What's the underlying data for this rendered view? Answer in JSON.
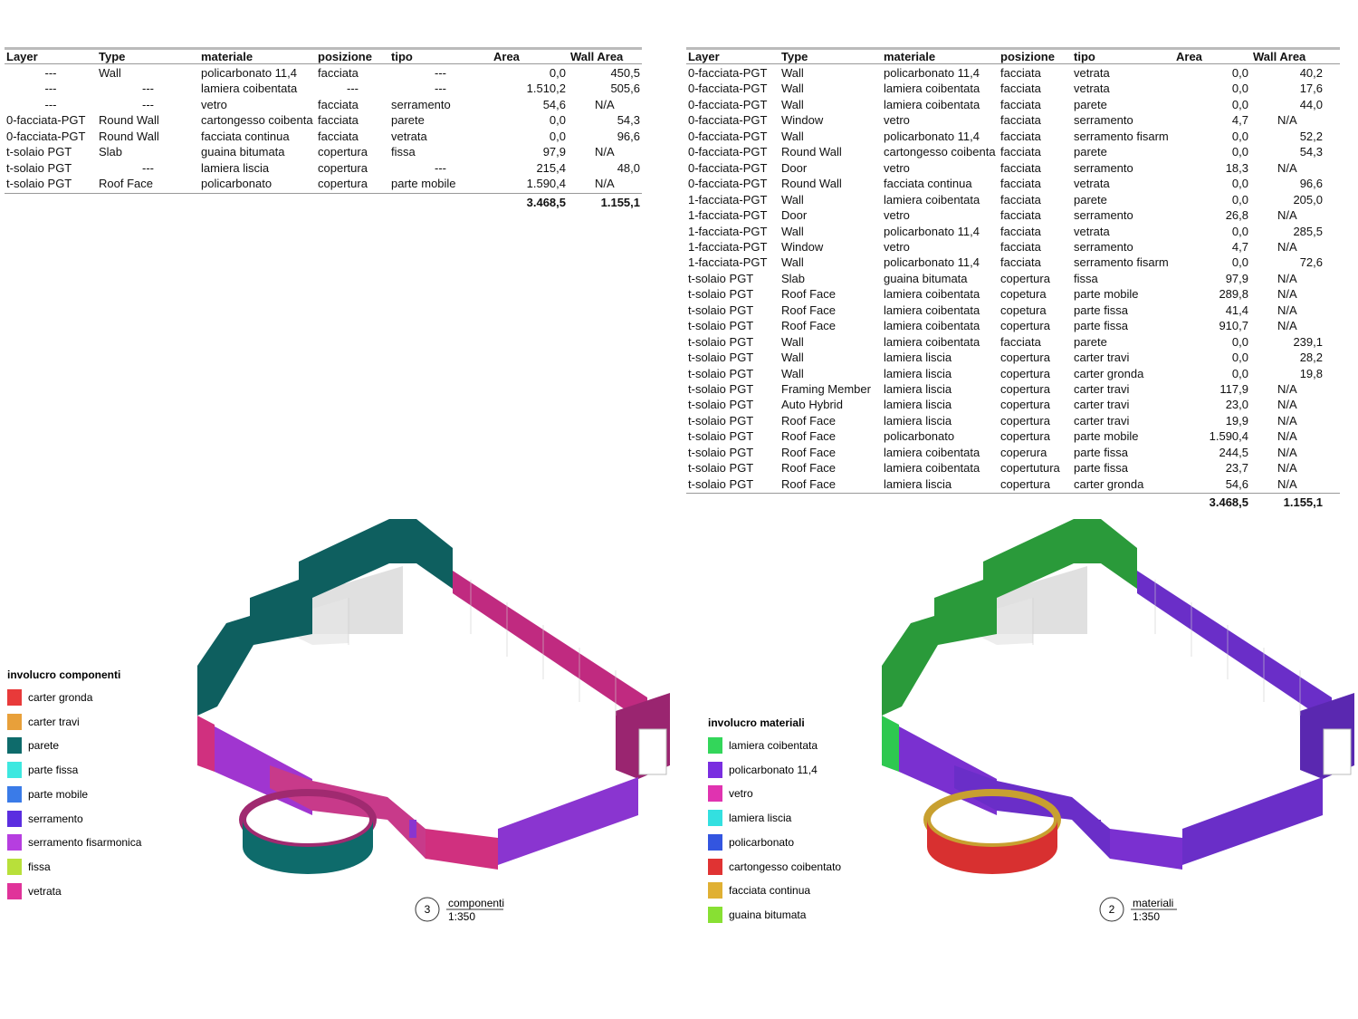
{
  "left_table": {
    "headers": [
      "Layer",
      "Type",
      "materiale",
      "posizione",
      "tipo",
      "Area",
      "Wall Area"
    ],
    "rows": [
      [
        "---",
        "Wall",
        "policarbonato 11,4",
        "facciata",
        "---",
        "0,0",
        "450,5"
      ],
      [
        "---",
        "---",
        "lamiera coibentata",
        "---",
        "---",
        "1.510,2",
        "505,6"
      ],
      [
        "---",
        "---",
        "vetro",
        "facciata",
        "serramento",
        "54,6",
        "N/A"
      ],
      [
        "0-facciata-PGT",
        "Round Wall",
        "cartongesso coibenta",
        "facciata",
        "parete",
        "0,0",
        "54,3"
      ],
      [
        "0-facciata-PGT",
        "Round Wall",
        "facciata continua",
        "facciata",
        "vetrata",
        "0,0",
        "96,6"
      ],
      [
        "t-solaio PGT",
        "Slab",
        "guaina bitumata",
        "copertura",
        "fissa",
        "97,9",
        "N/A"
      ],
      [
        "t-solaio PGT",
        "---",
        "lamiera liscia",
        "copertura",
        "---",
        "215,4",
        "48,0"
      ],
      [
        "t-solaio PGT",
        "Roof Face",
        "policarbonato",
        "copertura",
        "parte mobile",
        "1.590,4",
        "N/A"
      ]
    ],
    "totals": [
      "3.468,5",
      "1.155,1"
    ]
  },
  "right_table": {
    "headers": [
      "Layer",
      "Type",
      "materiale",
      "posizione",
      "tipo",
      "Area",
      "Wall Area"
    ],
    "rows": [
      [
        "0-facciata-PGT",
        "Wall",
        "policarbonato 11,4",
        "facciata",
        "vetrata",
        "0,0",
        "40,2"
      ],
      [
        "0-facciata-PGT",
        "Wall",
        "lamiera coibentata",
        "facciata",
        "vetrata",
        "0,0",
        "17,6"
      ],
      [
        "0-facciata-PGT",
        "Wall",
        "lamiera coibentata",
        "facciata",
        "parete",
        "0,0",
        "44,0"
      ],
      [
        "0-facciata-PGT",
        "Window",
        "vetro",
        "facciata",
        "serramento",
        "4,7",
        "N/A"
      ],
      [
        "0-facciata-PGT",
        "Wall",
        "policarbonato 11,4",
        "facciata",
        "serramento fisarm",
        "0,0",
        "52,2"
      ],
      [
        "0-facciata-PGT",
        "Round Wall",
        "cartongesso coibenta",
        "facciata",
        "parete",
        "0,0",
        "54,3"
      ],
      [
        "0-facciata-PGT",
        "Door",
        "vetro",
        "facciata",
        "serramento",
        "18,3",
        "N/A"
      ],
      [
        "0-facciata-PGT",
        "Round Wall",
        "facciata continua",
        "facciata",
        "vetrata",
        "0,0",
        "96,6"
      ],
      [
        "1-facciata-PGT",
        "Wall",
        "lamiera coibentata",
        "facciata",
        "parete",
        "0,0",
        "205,0"
      ],
      [
        "1-facciata-PGT",
        "Door",
        "vetro",
        "facciata",
        "serramento",
        "26,8",
        "N/A"
      ],
      [
        "1-facciata-PGT",
        "Wall",
        "policarbonato 11,4",
        "facciata",
        "vetrata",
        "0,0",
        "285,5"
      ],
      [
        "1-facciata-PGT",
        "Window",
        "vetro",
        "facciata",
        "serramento",
        "4,7",
        "N/A"
      ],
      [
        "1-facciata-PGT",
        "Wall",
        "policarbonato 11,4",
        "facciata",
        "serramento fisarm",
        "0,0",
        "72,6"
      ],
      [
        "t-solaio PGT",
        "Slab",
        "guaina bitumata",
        "copertura",
        "fissa",
        "97,9",
        "N/A"
      ],
      [
        "t-solaio PGT",
        "Roof Face",
        "lamiera coibentata",
        "copetura",
        "parte mobile",
        "289,8",
        "N/A"
      ],
      [
        "t-solaio PGT",
        "Roof Face",
        "lamiera coibentata",
        "copetura",
        "parte fissa",
        "41,4",
        "N/A"
      ],
      [
        "t-solaio PGT",
        "Roof Face",
        "lamiera coibentata",
        "copertura",
        "parte fissa",
        "910,7",
        "N/A"
      ],
      [
        "t-solaio PGT",
        "Wall",
        "lamiera coibentata",
        "facciata",
        "parete",
        "0,0",
        "239,1"
      ],
      [
        "t-solaio PGT",
        "Wall",
        "lamiera liscia",
        "copertura",
        "carter travi",
        "0,0",
        "28,2"
      ],
      [
        "t-solaio PGT",
        "Wall",
        "lamiera liscia",
        "copertura",
        "carter gronda",
        "0,0",
        "19,8"
      ],
      [
        "t-solaio PGT",
        "Framing Member",
        "lamiera liscia",
        "copertura",
        "carter travi",
        "117,9",
        "N/A"
      ],
      [
        "t-solaio PGT",
        "Auto Hybrid",
        "lamiera liscia",
        "copertura",
        "carter travi",
        "23,0",
        "N/A"
      ],
      [
        "t-solaio PGT",
        "Roof Face",
        "lamiera liscia",
        "copertura",
        "carter travi",
        "19,9",
        "N/A"
      ],
      [
        "t-solaio PGT",
        "Roof Face",
        "policarbonato",
        "copertura",
        "parte mobile",
        "1.590,4",
        "N/A"
      ],
      [
        "t-solaio PGT",
        "Roof Face",
        "lamiera coibentata",
        "coperura",
        "parte fissa",
        "244,5",
        "N/A"
      ],
      [
        "t-solaio PGT",
        "Roof Face",
        "lamiera coibentata",
        "copertutura",
        "parte fissa",
        "23,7",
        "N/A"
      ],
      [
        "t-solaio PGT",
        "Roof Face",
        "lamiera liscia",
        "copertura",
        "carter gronda",
        "54,6",
        "N/A"
      ]
    ],
    "totals": [
      "3.468,5",
      "1.155,1"
    ]
  },
  "legend_components": {
    "title": "involucro componenti",
    "items": [
      {
        "label": "carter gronda",
        "color": "#e83a3a"
      },
      {
        "label": "carter travi",
        "color": "#e8a03a"
      },
      {
        "label": "parete",
        "color": "#0e6b6b"
      },
      {
        "label": "parte fissa",
        "color": "#3ee8e0"
      },
      {
        "label": "parte mobile",
        "color": "#3a7be8"
      },
      {
        "label": "serramento",
        "color": "#5b2ee0"
      },
      {
        "label": "serramento fisarmonica",
        "color": "#b63ee0"
      },
      {
        "label": "fissa",
        "color": "#b8e03a"
      },
      {
        "label": "vetrata",
        "color": "#e0339a"
      }
    ]
  },
  "legend_materials": {
    "title": "involucro materiali",
    "items": [
      {
        "label": "lamiera coibentata",
        "color": "#33d65a"
      },
      {
        "label": "policarbonato 11,4",
        "color": "#7a2ee0"
      },
      {
        "label": "vetro",
        "color": "#e033b0"
      },
      {
        "label": "lamiera liscia",
        "color": "#33e0e0"
      },
      {
        "label": "policarbonato",
        "color": "#3355e0"
      },
      {
        "label": "cartongesso coibentato",
        "color": "#e03333"
      },
      {
        "label": "facciata continua",
        "color": "#e0b033"
      },
      {
        "label": "guaina bitumata",
        "color": "#88e033"
      }
    ]
  },
  "view_components": {
    "number": "3",
    "name": "componenti",
    "scale": "1:350"
  },
  "view_materials": {
    "number": "2",
    "name": "materiali",
    "scale": "1:350"
  }
}
